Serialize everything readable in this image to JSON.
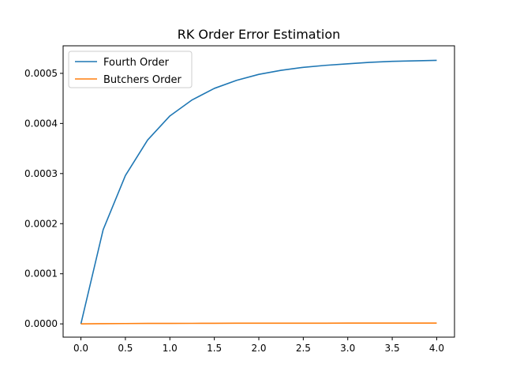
{
  "chart_data": {
    "type": "line",
    "title": "RK Order Error Estimation",
    "xlabel": "",
    "ylabel": "",
    "xlim": [
      -0.2,
      4.2
    ],
    "ylim": [
      -2.65e-05,
      0.000555
    ],
    "xticks": [
      0.0,
      0.5,
      1.0,
      1.5,
      2.0,
      2.5,
      3.0,
      3.5,
      4.0
    ],
    "xtick_labels": [
      "0.0",
      "0.5",
      "1.0",
      "1.5",
      "2.0",
      "2.5",
      "3.0",
      "3.5",
      "4.0"
    ],
    "yticks": [
      0.0,
      0.0001,
      0.0002,
      0.0003,
      0.0004,
      0.0005
    ],
    "ytick_labels": [
      "0.0000",
      "0.0001",
      "0.0002",
      "0.0003",
      "0.0004",
      "0.0005"
    ],
    "grid": false,
    "legend_position": "top-left",
    "x": [
      0.0,
      0.25,
      0.5,
      0.75,
      1.0,
      1.25,
      1.5,
      1.75,
      2.0,
      2.25,
      2.5,
      2.75,
      3.0,
      3.25,
      3.5,
      3.75,
      4.0
    ],
    "series": [
      {
        "name": "Fourth Order",
        "color": "#1f77b4",
        "values": [
          0.0,
          0.000188,
          0.000296,
          0.000367,
          0.000415,
          0.000447,
          0.00047,
          0.000486,
          0.000498,
          0.000506,
          0.000512,
          0.000516,
          0.000519,
          0.000522,
          0.000524,
          0.000525,
          0.000526
        ]
      },
      {
        "name": "Butchers Order",
        "color": "#ff7f0e",
        "values": [
          0.0,
          4e-07,
          7e-07,
          9e-07,
          1e-06,
          1.1e-06,
          1.2e-06,
          1.3e-06,
          1.3e-06,
          1.4e-06,
          1.4e-06,
          1.4e-06,
          1.5e-06,
          1.5e-06,
          1.5e-06,
          1.5e-06,
          1.5e-06
        ]
      }
    ]
  }
}
